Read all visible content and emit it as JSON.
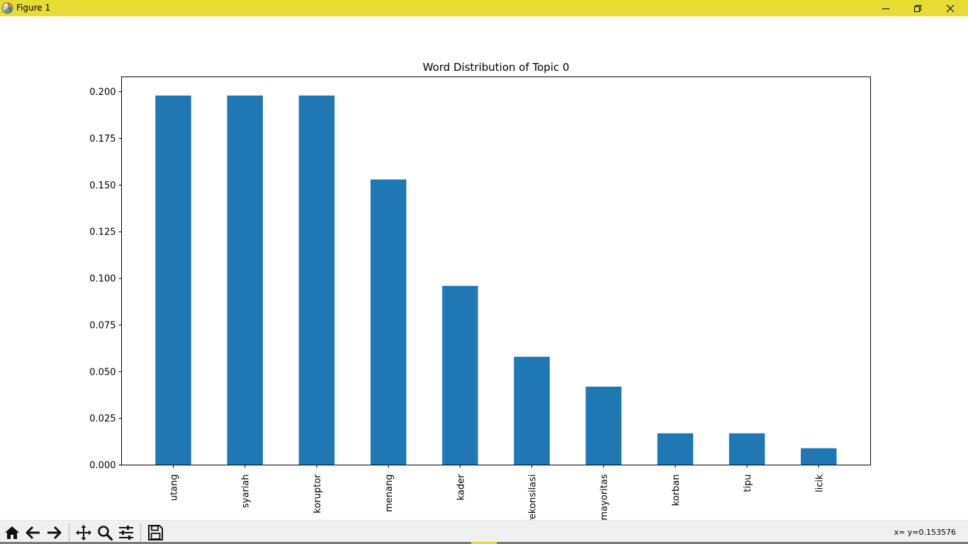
{
  "window": {
    "title": "Figure 1",
    "titlebar_color": "#e6dc34",
    "controls": [
      "minimize-icon",
      "restore-icon",
      "close-icon"
    ]
  },
  "toolbar": {
    "buttons": [
      "home-icon",
      "back-arrow-icon",
      "forward-arrow-icon",
      "pan-icon",
      "zoom-icon",
      "configure-subplots-icon",
      "save-icon"
    ],
    "coordinate_readout": "x= y=0.153576"
  },
  "chart_data": {
    "type": "bar",
    "title": "Word Distribution of Topic 0",
    "xlabel": "",
    "ylabel": "",
    "categories": [
      "utang",
      "syariah",
      "koruptor",
      "menang",
      "kader",
      "rekonsilasi",
      "mayoritas",
      "korban",
      "tipu",
      "licik"
    ],
    "values": [
      0.198,
      0.198,
      0.198,
      0.153,
      0.096,
      0.058,
      0.042,
      0.017,
      0.017,
      0.009
    ],
    "ylim": [
      0,
      0.208
    ],
    "yticks": [
      "0.000",
      "0.025",
      "0.050",
      "0.075",
      "0.100",
      "0.125",
      "0.150",
      "0.175",
      "0.200"
    ],
    "ytick_values": [
      0,
      0.025,
      0.05,
      0.075,
      0.1,
      0.125,
      0.15,
      0.175,
      0.2
    ],
    "bar_color": "#1f77b4",
    "grid": false,
    "xtick_rotation": "vertical"
  }
}
